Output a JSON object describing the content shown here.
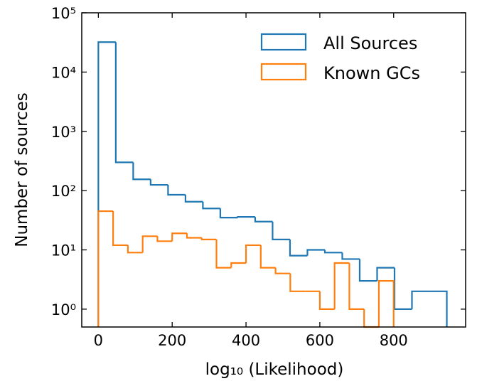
{
  "chart_data": {
    "type": "histogram",
    "x_label": "log₁₀ (Likelihood)",
    "y_label": "Number of sources",
    "log_y": true,
    "legend": "upper right",
    "xlim": [
      -45,
      995
    ],
    "ylim": [
      0.5,
      100000
    ],
    "xticks": [
      0,
      200,
      400,
      600,
      800
    ],
    "yticks": [
      {
        "value": 1,
        "label": "10⁰"
      },
      {
        "value": 10,
        "label": "10¹"
      },
      {
        "value": 100,
        "label": "10²"
      },
      {
        "value": 1000,
        "label": "10³"
      },
      {
        "value": 10000,
        "label": "10⁴"
      },
      {
        "value": 100000,
        "label": "10⁵"
      }
    ],
    "series": [
      {
        "name": "All Sources",
        "color": "#1f77b4",
        "bins": [
          0,
          47.2,
          94.4,
          141.6,
          188.8,
          236,
          283.2,
          330.4,
          377.6,
          424.8,
          472,
          519.2,
          566.4,
          613.6,
          660.8,
          708,
          755.2,
          802.4,
          849.6,
          896.8,
          944
        ],
        "values": [
          32000,
          300,
          155,
          125,
          85,
          65,
          50,
          35,
          36,
          30,
          15,
          8,
          10,
          9,
          7,
          3,
          5,
          1,
          2,
          2
        ]
      },
      {
        "name": "Known GCs",
        "color": "#ff7f0e",
        "bins": [
          0,
          40,
          80,
          120,
          160,
          200,
          240,
          280,
          320,
          360,
          400,
          440,
          480,
          520,
          560,
          600,
          640,
          680,
          720,
          760,
          800
        ],
        "values": [
          45,
          12,
          9,
          17,
          14,
          19,
          16,
          15,
          5,
          6,
          12,
          5,
          4,
          2,
          2,
          1,
          6,
          1,
          0,
          3
        ]
      }
    ]
  }
}
